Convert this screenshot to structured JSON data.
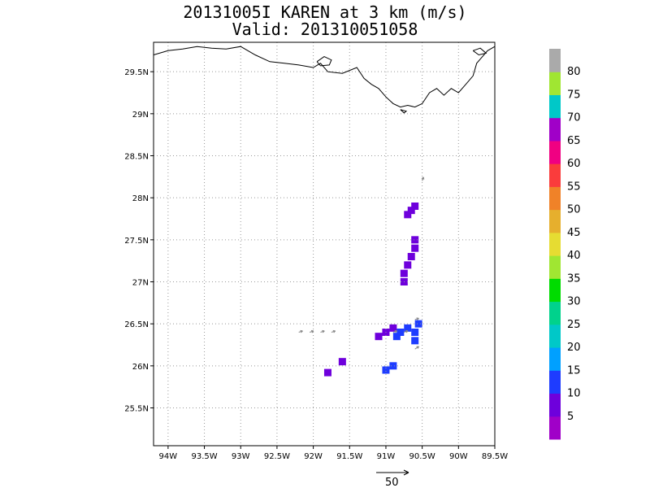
{
  "title": {
    "line1": "20131005I KAREN at 3 km (m/s)",
    "line2": "Valid: 201310051058"
  },
  "map": {
    "lon_range": [
      -94.2,
      -89.5
    ],
    "lat_range": [
      25.05,
      29.85
    ],
    "lon_ticks": [
      {
        "value": -94.0,
        "label": "94W"
      },
      {
        "value": -93.5,
        "label": "93.5W"
      },
      {
        "value": -93.0,
        "label": "93W"
      },
      {
        "value": -92.5,
        "label": "92.5W"
      },
      {
        "value": -92.0,
        "label": "92W"
      },
      {
        "value": -91.5,
        "label": "91.5W"
      },
      {
        "value": -91.0,
        "label": "91W"
      },
      {
        "value": -90.5,
        "label": "90.5W"
      },
      {
        "value": -90.0,
        "label": "90W"
      },
      {
        "value": -89.5,
        "label": "89.5W"
      }
    ],
    "lat_ticks": [
      {
        "value": 25.5,
        "label": "25.5N"
      },
      {
        "value": 26.0,
        "label": "26N"
      },
      {
        "value": 26.5,
        "label": "26.5N"
      },
      {
        "value": 27.0,
        "label": "27N"
      },
      {
        "value": 27.5,
        "label": "27.5N"
      },
      {
        "value": 28.0,
        "label": "28N"
      },
      {
        "value": 28.5,
        "label": "28.5N"
      },
      {
        "value": 29.0,
        "label": "29N"
      },
      {
        "value": 29.5,
        "label": "29.5N"
      }
    ],
    "coastline": [
      [
        -94.2,
        29.7
      ],
      [
        -94.0,
        29.75
      ],
      [
        -93.8,
        29.77
      ],
      [
        -93.6,
        29.8
      ],
      [
        -93.4,
        29.78
      ],
      [
        -93.2,
        29.77
      ],
      [
        -93.0,
        29.8
      ],
      [
        -92.8,
        29.7
      ],
      [
        -92.6,
        29.62
      ],
      [
        -92.4,
        29.6
      ],
      [
        -92.2,
        29.58
      ],
      [
        -92.0,
        29.55
      ],
      [
        -91.9,
        29.6
      ],
      [
        -91.8,
        29.5
      ],
      [
        -91.6,
        29.48
      ],
      [
        -91.4,
        29.55
      ],
      [
        -91.3,
        29.42
      ],
      [
        -91.2,
        29.35
      ],
      [
        -91.1,
        29.3
      ],
      [
        -91.0,
        29.2
      ],
      [
        -90.9,
        29.12
      ],
      [
        -90.8,
        29.08
      ],
      [
        -90.7,
        29.1
      ],
      [
        -90.6,
        29.08
      ],
      [
        -90.5,
        29.12
      ],
      [
        -90.4,
        29.25
      ],
      [
        -90.3,
        29.3
      ],
      [
        -90.2,
        29.22
      ],
      [
        -90.1,
        29.3
      ],
      [
        -90.0,
        29.25
      ],
      [
        -89.9,
        29.35
      ],
      [
        -89.8,
        29.45
      ],
      [
        -89.75,
        29.6
      ],
      [
        -89.7,
        29.65
      ],
      [
        -89.6,
        29.75
      ],
      [
        -89.5,
        29.8
      ]
    ],
    "islands": [
      [
        [
          -91.95,
          29.62
        ],
        [
          -91.85,
          29.68
        ],
        [
          -91.75,
          29.64
        ],
        [
          -91.78,
          29.58
        ],
        [
          -91.9,
          29.57
        ],
        [
          -91.95,
          29.62
        ]
      ],
      [
        [
          -90.8,
          29.05
        ],
        [
          -90.72,
          29.03
        ],
        [
          -90.75,
          29.01
        ],
        [
          -90.8,
          29.05
        ]
      ],
      [
        [
          -89.8,
          29.75
        ],
        [
          -89.7,
          29.78
        ],
        [
          -89.62,
          29.72
        ],
        [
          -89.72,
          29.7
        ],
        [
          -89.8,
          29.75
        ]
      ]
    ]
  },
  "colorbar": {
    "colors": [
      "#a000c8",
      "#6e00dc",
      "#1e3cff",
      "#00a0ff",
      "#00c8c8",
      "#00d28c",
      "#00dc00",
      "#a0e632",
      "#e6dc32",
      "#e6af2d",
      "#f08228",
      "#fa3c3c",
      "#f00082",
      "#a000c8",
      "#00c8c8",
      "#a0e632",
      "#aaaaaa"
    ],
    "labels": [
      "5",
      "10",
      "15",
      "20",
      "25",
      "30",
      "35",
      "40",
      "45",
      "50",
      "55",
      "60",
      "65",
      "70",
      "75",
      "80"
    ]
  },
  "echoes": [
    {
      "lon": -90.65,
      "lat": 27.85,
      "value": 8
    },
    {
      "lon": -90.6,
      "lat": 27.9,
      "value": 8
    },
    {
      "lon": -90.7,
      "lat": 27.8,
      "value": 8
    },
    {
      "lon": -90.6,
      "lat": 27.5,
      "value": 8
    },
    {
      "lon": -90.6,
      "lat": 27.4,
      "value": 8
    },
    {
      "lon": -90.65,
      "lat": 27.3,
      "value": 8
    },
    {
      "lon": -90.7,
      "lat": 27.2,
      "value": 8
    },
    {
      "lon": -90.75,
      "lat": 27.1,
      "value": 8
    },
    {
      "lon": -90.75,
      "lat": 27.0,
      "value": 8
    },
    {
      "lon": -91.0,
      "lat": 26.4,
      "value": 8
    },
    {
      "lon": -90.9,
      "lat": 26.45,
      "value": 8
    },
    {
      "lon": -90.8,
      "lat": 26.4,
      "value": 12
    },
    {
      "lon": -90.7,
      "lat": 26.45,
      "value": 12
    },
    {
      "lon": -90.6,
      "lat": 26.4,
      "value": 12
    },
    {
      "lon": -90.55,
      "lat": 26.5,
      "value": 14
    },
    {
      "lon": -90.6,
      "lat": 26.3,
      "value": 14
    },
    {
      "lon": -91.1,
      "lat": 26.35,
      "value": 8
    },
    {
      "lon": -90.85,
      "lat": 26.35,
      "value": 14
    },
    {
      "lon": -91.6,
      "lat": 26.05,
      "value": 8
    },
    {
      "lon": -91.8,
      "lat": 25.92,
      "value": 8
    },
    {
      "lon": -91.0,
      "lat": 25.95,
      "value": 14
    },
    {
      "lon": -90.9,
      "lat": 26.0,
      "value": 14
    }
  ],
  "wind_vectors": [
    {
      "lon": -92.2,
      "lat": 26.4,
      "u": 6,
      "v": 2
    },
    {
      "lon": -92.05,
      "lat": 26.4,
      "u": 6,
      "v": 2
    },
    {
      "lon": -91.9,
      "lat": 26.4,
      "u": 6,
      "v": 2
    },
    {
      "lon": -91.75,
      "lat": 26.4,
      "u": 6,
      "v": 2
    },
    {
      "lon": -90.5,
      "lat": 28.2,
      "u": 2,
      "v": 6
    },
    {
      "lon": -90.6,
      "lat": 26.2,
      "u": 6,
      "v": 4
    },
    {
      "lon": -90.9,
      "lat": 26.4,
      "u": 6,
      "v": 2
    },
    {
      "lon": -90.75,
      "lat": 26.4,
      "u": 6,
      "v": 2
    },
    {
      "lon": -90.6,
      "lat": 26.55,
      "u": 6,
      "v": 2
    }
  ],
  "reference_vector": {
    "label": "50",
    "speed": 50
  }
}
